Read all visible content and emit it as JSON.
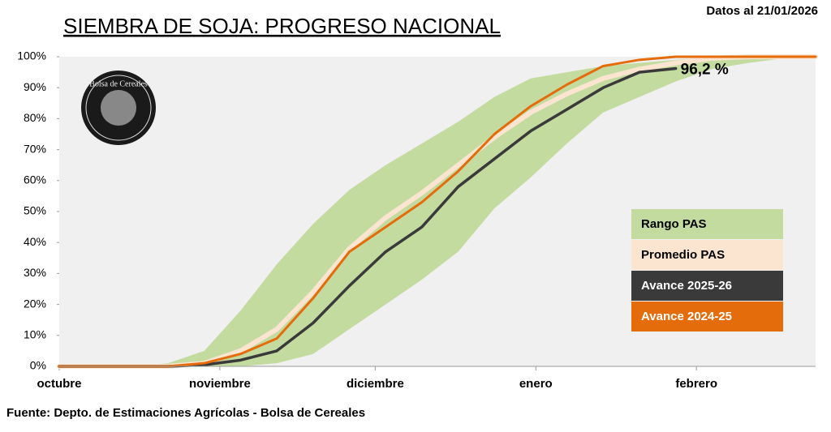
{
  "chart_data": {
    "type": "line",
    "title": "SIEMBRA DE SOJA: PROGRESO NACIONAL",
    "subtitle": "Datos al 21/01/2026",
    "source": "Fuente: Depto. de Estimaciones Agrícolas - Bolsa de Cereales",
    "logo_text": "Bolsa de Cereales",
    "x": [
      0,
      7,
      14,
      21,
      28,
      35,
      42,
      49,
      56,
      63,
      70,
      77,
      84,
      91,
      98,
      105,
      112,
      119,
      126,
      133,
      140,
      146
    ],
    "xlim": [
      0,
      146
    ],
    "xticks": [
      {
        "value": 0,
        "label": "octubre"
      },
      {
        "value": 31,
        "label": "noviembre"
      },
      {
        "value": 61,
        "label": "diciembre"
      },
      {
        "value": 92,
        "label": "enero"
      },
      {
        "value": 123,
        "label": "febrero"
      }
    ],
    "ylim": [
      0,
      100
    ],
    "yticks": [
      {
        "value": 0,
        "label": "0%"
      },
      {
        "value": 10,
        "label": "10%"
      },
      {
        "value": 20,
        "label": "20%"
      },
      {
        "value": 30,
        "label": "30%"
      },
      {
        "value": 40,
        "label": "40%"
      },
      {
        "value": 50,
        "label": "50%"
      },
      {
        "value": 60,
        "label": "60%"
      },
      {
        "value": 70,
        "label": "70%"
      },
      {
        "value": 80,
        "label": "80%"
      },
      {
        "value": 90,
        "label": "90%"
      },
      {
        "value": 100,
        "label": "100%"
      }
    ],
    "legend": "lower right",
    "range": {
      "name": "Rango PAS",
      "color": "#c4dba0",
      "low": [
        0,
        0,
        0,
        0,
        0,
        0,
        1,
        4,
        12,
        20,
        28,
        37,
        51,
        61,
        72,
        82,
        87,
        92,
        96,
        98,
        99.5,
        100
      ],
      "high": [
        0,
        0,
        0,
        1,
        5,
        18,
        33,
        46,
        57,
        65,
        72,
        79,
        87,
        93,
        95,
        97,
        98,
        99,
        100,
        100,
        100,
        100
      ]
    },
    "series": [
      {
        "name": "Promedio PAS",
        "color": "#fbe5d0",
        "width": 6,
        "values": [
          0,
          0,
          0,
          0,
          1,
          5,
          12,
          24,
          38,
          48,
          56,
          65,
          74,
          82,
          88,
          93,
          96,
          98,
          99.5,
          100,
          100,
          100
        ]
      },
      {
        "name": "Avance 2025-26",
        "color": "#3a3a3a",
        "width": 3.5,
        "values": [
          0,
          0,
          0,
          0,
          0.5,
          2,
          5,
          14,
          26,
          37,
          45,
          58,
          67,
          76,
          83,
          90,
          95,
          96.2,
          null,
          null,
          null,
          null
        ],
        "value_labels": [
          null,
          null,
          null,
          null,
          null,
          null,
          null,
          null,
          null,
          null,
          null,
          null,
          null,
          null,
          null,
          null,
          null,
          "96,2 %",
          null,
          null,
          null,
          null
        ]
      },
      {
        "name": "Avance 2024-25",
        "color": "#e46c0a",
        "width": 3,
        "values": [
          0,
          0,
          0,
          0,
          1,
          4,
          9,
          22,
          37,
          45,
          53,
          63,
          75,
          84,
          91,
          97,
          99,
          100,
          100,
          100,
          100,
          100
        ]
      }
    ]
  }
}
